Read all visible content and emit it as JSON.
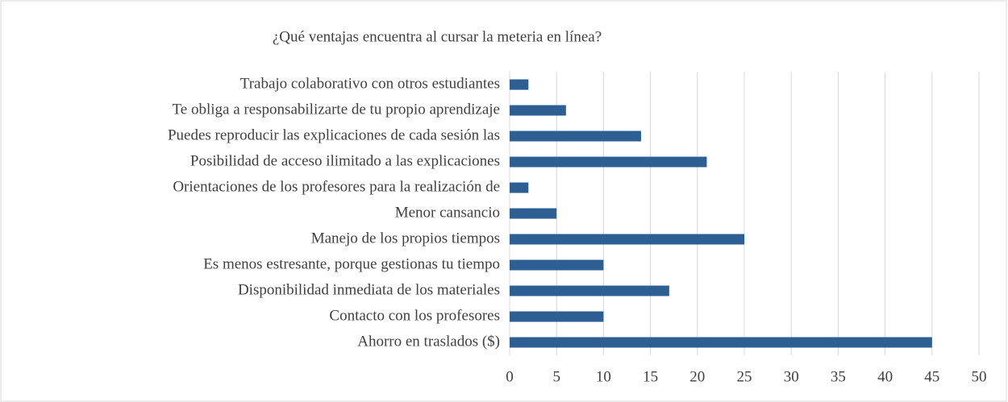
{
  "chart_data": {
    "type": "bar",
    "orientation": "horizontal",
    "title": "¿Qué ventajas encuentra al cursar la meteria en línea?",
    "categories": [
      "Trabajo colaborativo con otros estudiantes",
      "Te obliga a responsabilizarte de tu propio aprendizaje",
      "Puedes reproducir las explicaciones de cada sesión las",
      "Posibilidad de acceso ilimitado a las explicaciones",
      "Orientaciones de los profesores para la realización de",
      "Menor cansancio",
      "Manejo de los propios tiempos",
      "Es menos estresante, porque gestionas tu tiempo",
      "Disponibilidad inmediata de los materiales",
      "Contacto con los profesores",
      "Ahorro en traslados ($)"
    ],
    "values": [
      2,
      6,
      14,
      21,
      2,
      5,
      25,
      10,
      17,
      10,
      45
    ],
    "color": "#2e5f92",
    "xlim": [
      0,
      50
    ],
    "xticks": [
      0,
      5,
      10,
      15,
      20,
      25,
      30,
      35,
      40,
      45,
      50
    ],
    "grid": true
  }
}
